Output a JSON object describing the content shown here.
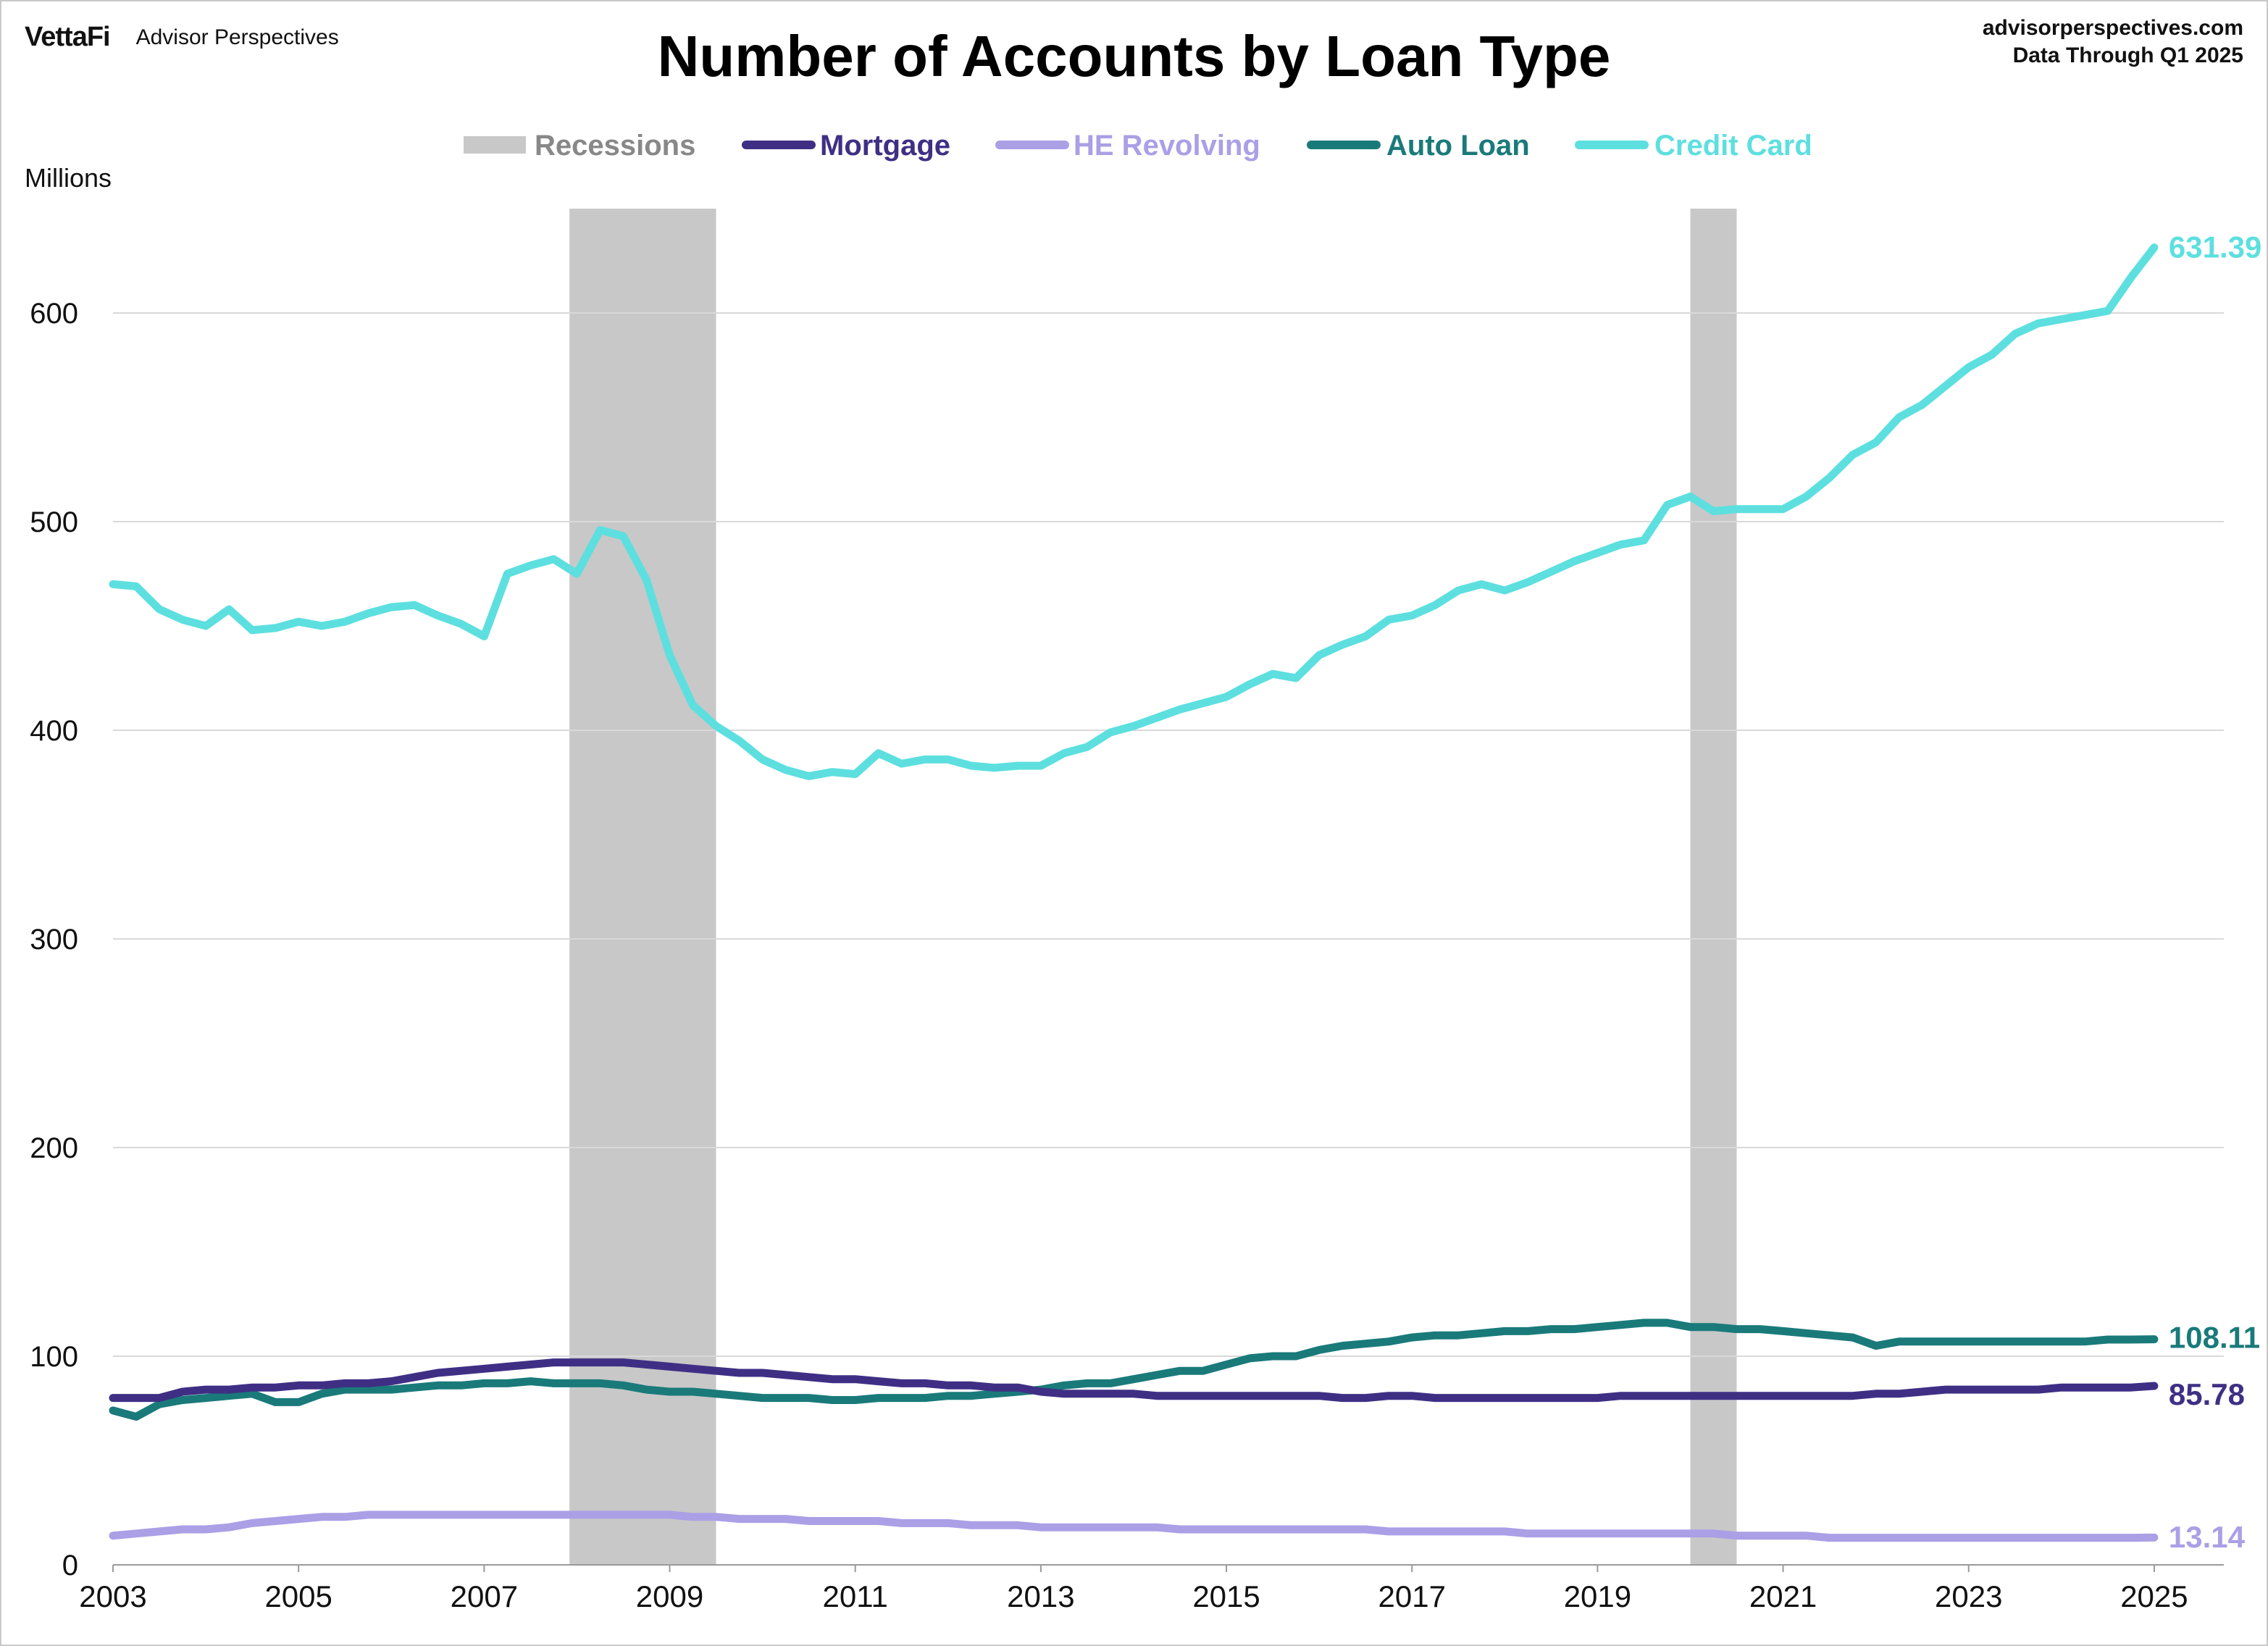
{
  "header": {
    "logo": "VettaFi",
    "brand_name": "Advisor Perspectives",
    "source_url": "advisorperspectives.com",
    "data_through": "Data Through Q1 2025"
  },
  "chart_data": {
    "type": "line",
    "title": "Number of Accounts by Loan Type",
    "ylabel": "Millions",
    "xlim": [
      2003,
      2025.75
    ],
    "ylim": [
      0,
      650
    ],
    "yticks": [
      0,
      100,
      200,
      300,
      400,
      500,
      600
    ],
    "xticks": [
      "2003",
      "2005",
      "2007",
      "2009",
      "2011",
      "2013",
      "2015",
      "2017",
      "2019",
      "2021",
      "2023",
      "2025"
    ],
    "grid": "horizontal",
    "legend_position": "top-center",
    "recessions": [
      {
        "start": 2007.92,
        "end": 2009.5
      },
      {
        "start": 2020.0,
        "end": 2020.5
      }
    ],
    "legend": [
      {
        "name": "Recessions",
        "color": "#c8c8c8",
        "kind": "band"
      },
      {
        "name": "Mortgage",
        "color": "#3f2f84",
        "kind": "line"
      },
      {
        "name": "HE Revolving",
        "color": "#ab9fe6",
        "kind": "line"
      },
      {
        "name": "Auto Loan",
        "color": "#1a7a7a",
        "kind": "line"
      },
      {
        "name": "Credit Card",
        "color": "#5ddfdf",
        "kind": "line"
      }
    ],
    "series": [
      {
        "name": "Credit Card",
        "color": "#5ddfdf",
        "end_label": "631.39",
        "start": 2003.0,
        "step": 0.25,
        "values": [
          470,
          469,
          458,
          453,
          450,
          458,
          448,
          449,
          452,
          450,
          452,
          456,
          459,
          460,
          455,
          451,
          445,
          475,
          479,
          482,
          475,
          496,
          493,
          472,
          436,
          412,
          402,
          395,
          386,
          381,
          378,
          380,
          379,
          389,
          384,
          386,
          386,
          383,
          382,
          383,
          383,
          389,
          392,
          399,
          402,
          406,
          410,
          413,
          416,
          422,
          427,
          425,
          436,
          441,
          445,
          453,
          455,
          460,
          467,
          470,
          467,
          471,
          476,
          481,
          485,
          489,
          491,
          508,
          512,
          505,
          506,
          506,
          506,
          512,
          521,
          532,
          538,
          550,
          556,
          565,
          574,
          580,
          590,
          595,
          597,
          599,
          601,
          617,
          631.39
        ]
      },
      {
        "name": "Auto Loan",
        "color": "#1a7a7a",
        "end_label": "108.11",
        "start": 2003.0,
        "step": 0.25,
        "values": [
          74,
          71,
          77,
          79,
          80,
          81,
          82,
          78,
          78,
          82,
          84,
          84,
          84,
          85,
          86,
          86,
          87,
          87,
          88,
          87,
          87,
          87,
          86,
          84,
          83,
          83,
          82,
          81,
          80,
          80,
          80,
          79,
          79,
          80,
          80,
          80,
          81,
          81,
          82,
          83,
          84,
          86,
          87,
          87,
          89,
          91,
          93,
          93,
          96,
          99,
          100,
          100,
          103,
          105,
          106,
          107,
          109,
          110,
          110,
          111,
          112,
          112,
          113,
          113,
          114,
          115,
          116,
          116,
          114,
          114,
          113,
          113,
          112,
          111,
          110,
          109,
          105,
          107,
          107,
          107,
          107,
          107,
          107,
          107,
          107,
          107,
          108,
          108,
          108.11
        ]
      },
      {
        "name": "Mortgage",
        "color": "#3f2f84",
        "end_label": "85.78",
        "start": 2003.0,
        "step": 0.25,
        "values": [
          80,
          80,
          80,
          83,
          84,
          84,
          85,
          85,
          86,
          86,
          87,
          87,
          88,
          90,
          92,
          93,
          94,
          95,
          96,
          97,
          97,
          97,
          97,
          96,
          95,
          94,
          93,
          92,
          92,
          91,
          90,
          89,
          89,
          88,
          87,
          87,
          86,
          86,
          85,
          85,
          83,
          82,
          82,
          82,
          82,
          81,
          81,
          81,
          81,
          81,
          81,
          81,
          81,
          80,
          80,
          81,
          81,
          80,
          80,
          80,
          80,
          80,
          80,
          80,
          80,
          81,
          81,
          81,
          81,
          81,
          81,
          81,
          81,
          81,
          81,
          81,
          82,
          82,
          83,
          84,
          84,
          84,
          84,
          84,
          85,
          85,
          85,
          85,
          85.78
        ]
      },
      {
        "name": "HE Revolving",
        "color": "#ab9fe6",
        "end_label": "13.14",
        "start": 2003.0,
        "step": 0.25,
        "values": [
          14,
          15,
          16,
          17,
          17,
          18,
          20,
          21,
          22,
          23,
          23,
          24,
          24,
          24,
          24,
          24,
          24,
          24,
          24,
          24,
          24,
          24,
          24,
          24,
          24,
          23,
          23,
          22,
          22,
          22,
          21,
          21,
          21,
          21,
          20,
          20,
          20,
          19,
          19,
          19,
          18,
          18,
          18,
          18,
          18,
          18,
          17,
          17,
          17,
          17,
          17,
          17,
          17,
          17,
          17,
          16,
          16,
          16,
          16,
          16,
          16,
          15,
          15,
          15,
          15,
          15,
          15,
          15,
          15,
          15,
          14,
          14,
          14,
          14,
          13,
          13,
          13,
          13,
          13,
          13,
          13,
          13,
          13,
          13,
          13,
          13,
          13,
          13,
          13.14
        ]
      }
    ]
  }
}
